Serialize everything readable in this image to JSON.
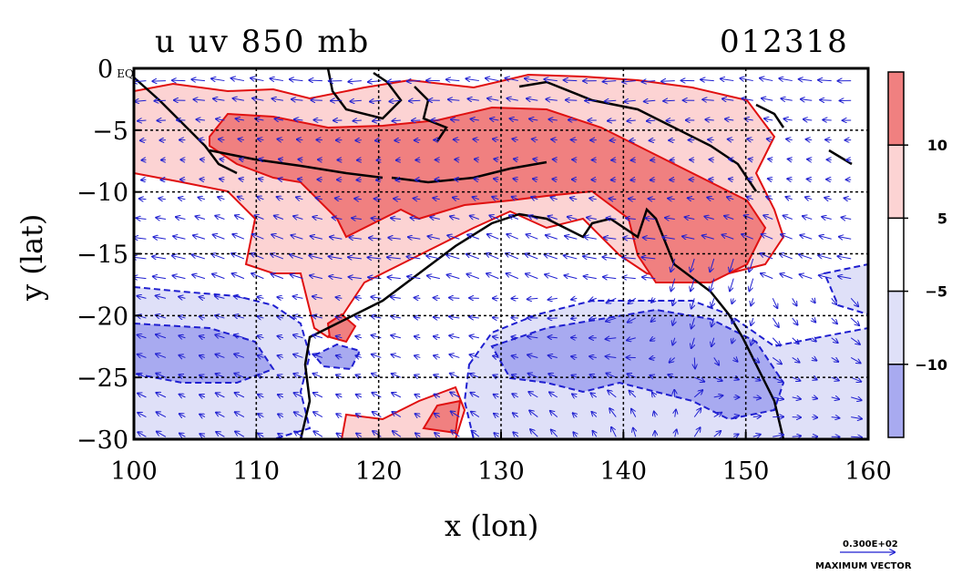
{
  "title_left": "u uv 850 mb",
  "title_right": "012318",
  "chart_data": {
    "type": "heatmap",
    "xlabel": "x (lon)",
    "ylabel": "y (lat)",
    "xlim": [
      100,
      160
    ],
    "ylim": [
      -30,
      0
    ],
    "xticks": [
      "100",
      "110",
      "120",
      "130",
      "140",
      "150",
      "160"
    ],
    "yticks": [
      "0 EQ",
      "−5",
      "−10",
      "−15",
      "−20",
      "−25",
      "−30"
    ],
    "grid": true,
    "colorbar": {
      "levels": [
        -10,
        -5,
        5,
        10
      ],
      "tick_labels": [
        "10",
        "5",
        "−5",
        "−10"
      ],
      "colors": [
        "#f08080",
        "#fcd3d3",
        "#ffffff",
        "#dfe0f8",
        "#a8aaf0"
      ]
    },
    "vector_legend": {
      "value_label": "0.300E+02",
      "caption": "MAXIMUM VECTOR"
    }
  }
}
